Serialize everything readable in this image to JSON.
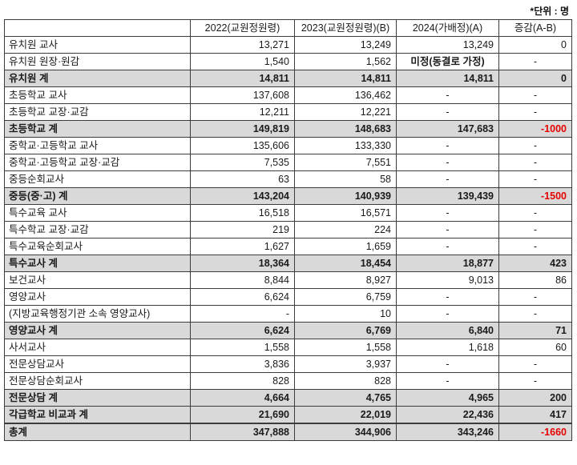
{
  "note": "*단위 : 명",
  "table": {
    "headers": [
      "",
      "2022(교원정원령)",
      "2023(교원정원령)(B)",
      "2024(가배정)(A)",
      "증감(A-B)"
    ],
    "col_keys": [
      "y2022",
      "y2023b",
      "y2024a",
      "diff_ab"
    ],
    "colors": {
      "subtotal_bg": "#d9d9d9",
      "negative_text": "#e60000",
      "border": "#3c3c3c"
    },
    "rows": [
      {
        "label": "유치원 교사",
        "values": [
          "13,271",
          "13,249",
          "13,249",
          "0"
        ],
        "kind": "normal"
      },
      {
        "label": "유치원 원장·원감",
        "values": [
          "1,540",
          "1,562",
          "미정(동결로 가정)",
          "-"
        ],
        "kind": "normal"
      },
      {
        "label": "유치원 계",
        "values": [
          "14,811",
          "14,811",
          "14,811",
          "0"
        ],
        "kind": "total"
      },
      {
        "label": "초등학교 교사",
        "values": [
          "137,608",
          "136,462",
          "-",
          "-"
        ],
        "kind": "normal"
      },
      {
        "label": "초등학교 교장·교감",
        "values": [
          "12,211",
          "12,221",
          "-",
          "-"
        ],
        "kind": "normal"
      },
      {
        "label": "초등학교 계",
        "values": [
          "149,819",
          "148,683",
          "147,683",
          "-1000"
        ],
        "kind": "total"
      },
      {
        "label": "중학교·고등학교 교사",
        "values": [
          "135,606",
          "133,330",
          "-",
          "-"
        ],
        "kind": "normal"
      },
      {
        "label": "중학교·고등학교 교장·교감",
        "values": [
          "7,535",
          "7,551",
          "-",
          "-"
        ],
        "kind": "normal"
      },
      {
        "label": "중등순회교사",
        "values": [
          "63",
          "58",
          "-",
          "-"
        ],
        "kind": "normal"
      },
      {
        "label": "중등(중·고) 계",
        "values": [
          "143,204",
          "140,939",
          "139,439",
          "-1500"
        ],
        "kind": "total"
      },
      {
        "label": "특수교육 교사",
        "values": [
          "16,518",
          "16,571",
          "-",
          "-"
        ],
        "kind": "normal"
      },
      {
        "label": "특수학교 교장·교감",
        "values": [
          "219",
          "224",
          "-",
          "-"
        ],
        "kind": "normal"
      },
      {
        "label": "특수교육순회교사",
        "values": [
          "1,627",
          "1,659",
          "-",
          "-"
        ],
        "kind": "normal"
      },
      {
        "label": "특수교사 계",
        "values": [
          "18,364",
          "18,454",
          "18,877",
          "423"
        ],
        "kind": "total"
      },
      {
        "label": "보건교사",
        "values": [
          "8,844",
          "8,927",
          "9,013",
          "86"
        ],
        "kind": "normal"
      },
      {
        "label": "영양교사",
        "values": [
          "6,624",
          "6,759",
          "-",
          "-"
        ],
        "kind": "normal"
      },
      {
        "label": "(지방교육행정기관 소속 영양교사)",
        "values": [
          "-",
          "10",
          "-",
          "-"
        ],
        "kind": "normal"
      },
      {
        "label": "영양교사 계",
        "values": [
          "6,624",
          "6,769",
          "6,840",
          "71"
        ],
        "kind": "total"
      },
      {
        "label": "사서교사",
        "values": [
          "1,558",
          "1,558",
          "1,618",
          "60"
        ],
        "kind": "normal"
      },
      {
        "label": "전문상담교사",
        "values": [
          "3,836",
          "3,937",
          "-",
          "-"
        ],
        "kind": "normal"
      },
      {
        "label": "전문상담순회교사",
        "values": [
          "828",
          "828",
          "-",
          "-"
        ],
        "kind": "normal"
      },
      {
        "label": "전문상담 계",
        "values": [
          "4,664",
          "4,765",
          "4,965",
          "200"
        ],
        "kind": "total"
      },
      {
        "label": "각급학교 비교과 계",
        "values": [
          "21,690",
          "22,019",
          "22,436",
          "417"
        ],
        "kind": "total"
      },
      {
        "label": "총계",
        "values": [
          "347,888",
          "344,906",
          "343,246",
          "-1660"
        ],
        "kind": "grand"
      }
    ]
  }
}
